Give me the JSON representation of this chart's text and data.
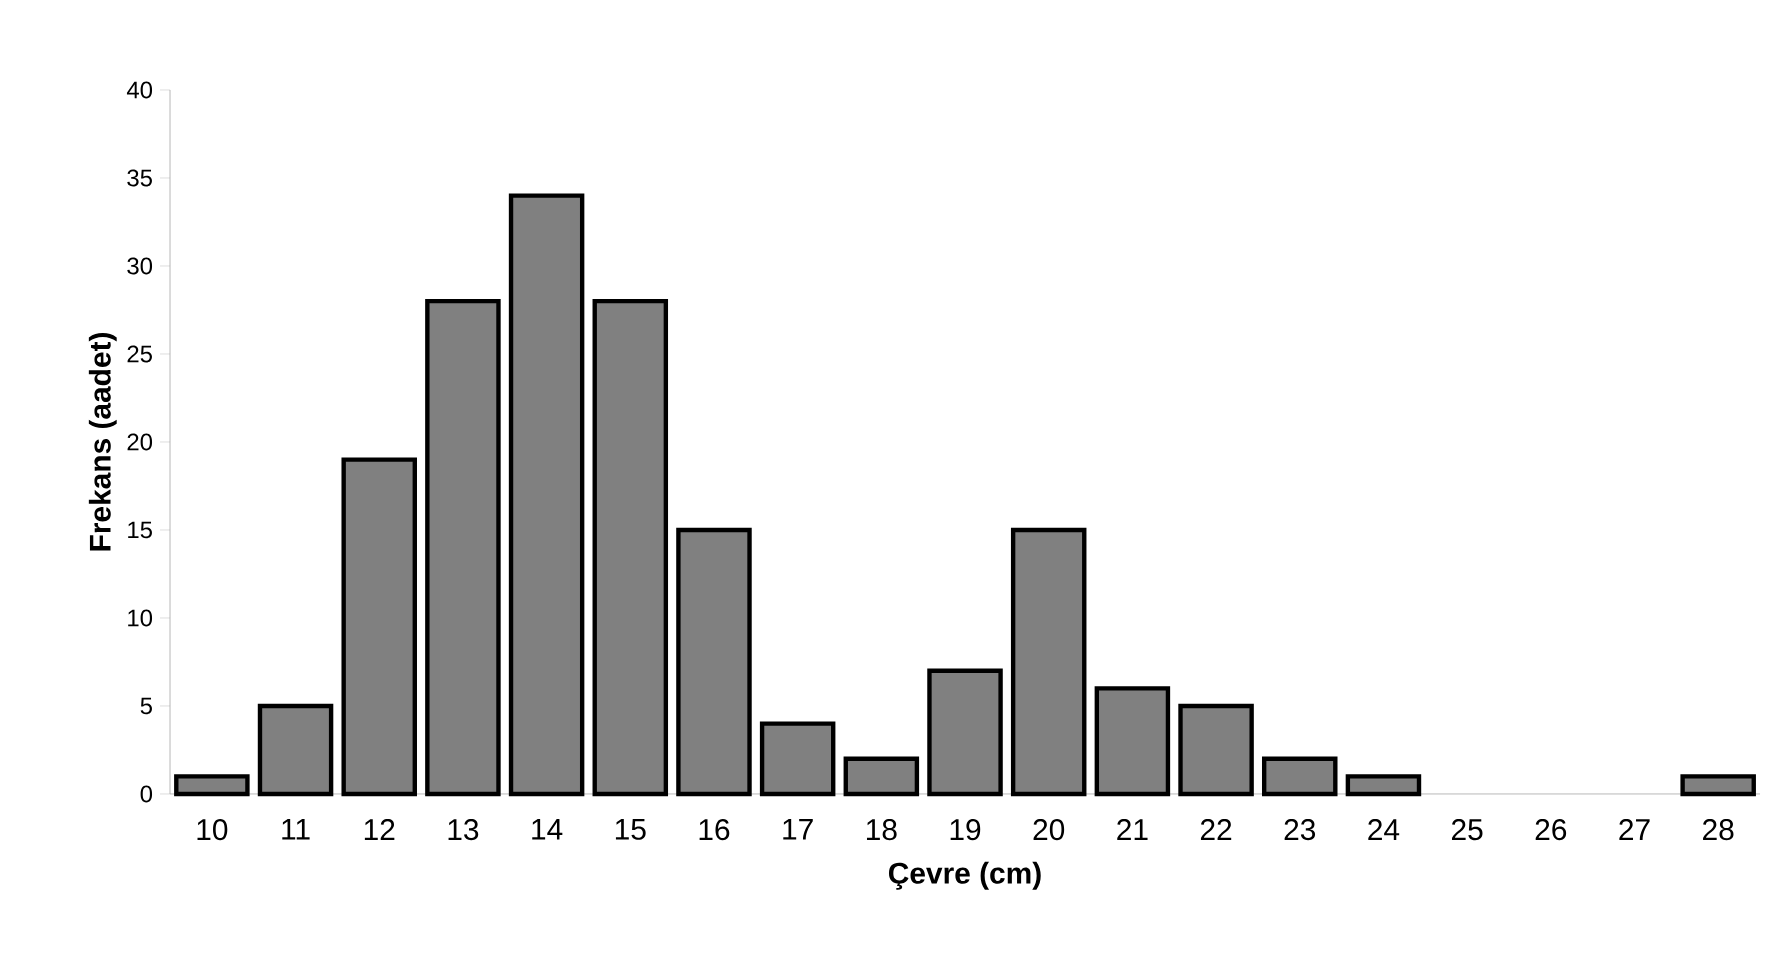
{
  "chart_data": {
    "type": "bar",
    "xlabel": "Çevre (cm)",
    "ylabel": "Frekans (aadet)",
    "categories": [
      "10",
      "11",
      "12",
      "13",
      "14",
      "15",
      "16",
      "17",
      "18",
      "19",
      "20",
      "21",
      "22",
      "23",
      "24",
      "25",
      "26",
      "27",
      "28"
    ],
    "values": [
      1,
      5,
      19,
      28,
      34,
      28,
      15,
      4,
      2,
      7,
      15,
      6,
      5,
      2,
      1,
      0,
      0,
      0,
      1
    ],
    "color": "#808080",
    "ylim": [
      0,
      40
    ],
    "yticks": [
      0,
      5,
      10,
      15,
      20,
      25,
      30,
      35,
      40
    ]
  }
}
